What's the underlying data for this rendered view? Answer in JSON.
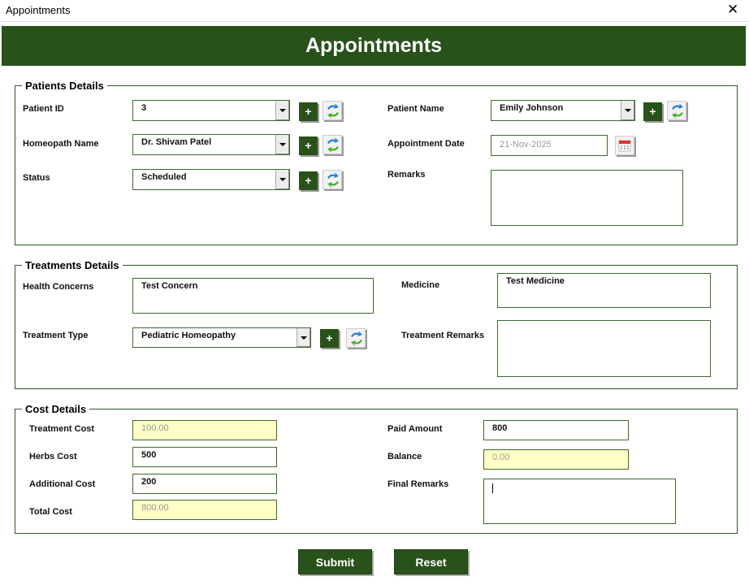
{
  "window": {
    "title": "Appointments",
    "close_icon": "close-icon"
  },
  "header": {
    "title": "Appointments"
  },
  "patients": {
    "legend": "Patients Details",
    "patient_id": {
      "label": "Patient ID",
      "value": "3"
    },
    "homeopath": {
      "label": "Homeopath Name",
      "value": "Dr. Shivam Patel"
    },
    "status": {
      "label": "Status",
      "value": "Scheduled"
    },
    "patient_name": {
      "label": "Patient Name",
      "value": "Emily Johnson"
    },
    "appointment_date": {
      "label": "Appointment Date",
      "value": "21-Nov-2025"
    },
    "remarks": {
      "label": "Remarks",
      "value": ""
    },
    "add_label": "+"
  },
  "treatments": {
    "legend": "Treatments Details",
    "health_concerns": {
      "label": "Health Concerns",
      "value": "Test Concern"
    },
    "treatment_type": {
      "label": "Treatment Type",
      "value": "Pediatric Homeopathy"
    },
    "medicine": {
      "label": "Medicine",
      "value": "Test Medicine"
    },
    "treatment_remarks": {
      "label": "Treatment Remarks",
      "value": ""
    }
  },
  "cost": {
    "legend": "Cost Details",
    "treatment_cost": {
      "label": "Treatment Cost",
      "value": "100.00"
    },
    "herbs_cost": {
      "label": "Herbs Cost",
      "value": "500"
    },
    "additional_cost": {
      "label": "Additional Cost",
      "value": "200"
    },
    "total_cost": {
      "label": "Total Cost",
      "value": "800.00"
    },
    "paid_amount": {
      "label": "Paid Amount",
      "value": "800"
    },
    "balance": {
      "label": "Balance",
      "value": "0.00"
    },
    "final_remarks": {
      "label": "Final Remarks",
      "value": ""
    }
  },
  "actions": {
    "submit": "Submit",
    "reset": "Reset"
  },
  "colors": {
    "brand_green": "#29521a",
    "readonly_fill": "#ffffc6"
  }
}
